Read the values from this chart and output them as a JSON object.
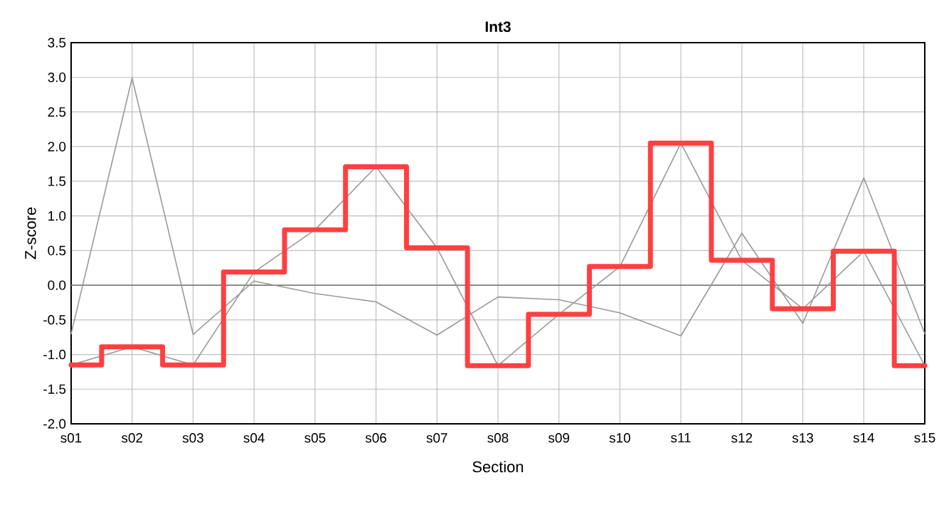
{
  "chart_data": {
    "type": "line",
    "title": "Int3",
    "xlabel": "Section",
    "ylabel": "Z-score",
    "categories": [
      "s01",
      "s02",
      "s03",
      "s04",
      "s05",
      "s06",
      "s07",
      "s08",
      "s09",
      "s10",
      "s11",
      "s12",
      "s13",
      "s14",
      "s15"
    ],
    "series": [
      {
        "color": "#999999",
        "values": [
          -0.7,
          2.99,
          -0.71,
          0.06,
          -0.12,
          -0.24,
          -0.72,
          -0.17,
          -0.21,
          -0.4,
          -0.73,
          0.75,
          -0.55,
          1.55,
          -0.7
        ]
      },
      {
        "color": "#999999",
        "values": [
          -1.15,
          -0.89,
          -1.15,
          0.19,
          0.8,
          1.71,
          0.54,
          -1.16,
          -0.42,
          0.27,
          2.05,
          0.36,
          -0.34,
          0.49,
          -1.16
        ]
      },
      {
        "type": "step",
        "color": "#ff4040",
        "values": [
          -1.15,
          -0.89,
          -1.15,
          0.19,
          0.8,
          1.71,
          0.54,
          -1.16,
          -0.42,
          0.27,
          2.05,
          0.36,
          -0.34,
          0.49,
          -1.16
        ]
      }
    ],
    "ylim": [
      -2,
      3.5
    ],
    "yticks": [
      {
        "value": -2,
        "label": "-2.0"
      },
      {
        "value": -1.5,
        "label": "-1.5"
      },
      {
        "value": -1,
        "label": "-1.0"
      },
      {
        "value": -0.5,
        "label": "-0.5"
      },
      {
        "value": 0,
        "label": "0.0"
      },
      {
        "value": 0.5,
        "label": "0.5"
      },
      {
        "value": 1,
        "label": "1.0"
      },
      {
        "value": 1.5,
        "label": "1.5"
      },
      {
        "value": 2,
        "label": "2.0"
      },
      {
        "value": 2.5,
        "label": "2.5"
      },
      {
        "value": 3,
        "label": "3.0"
      },
      {
        "value": 3.5,
        "label": "3.5"
      }
    ],
    "ref_lines": [
      {
        "axis": "y",
        "value": 0,
        "color": "#808080"
      }
    ],
    "grid": true,
    "marker": "none"
  }
}
